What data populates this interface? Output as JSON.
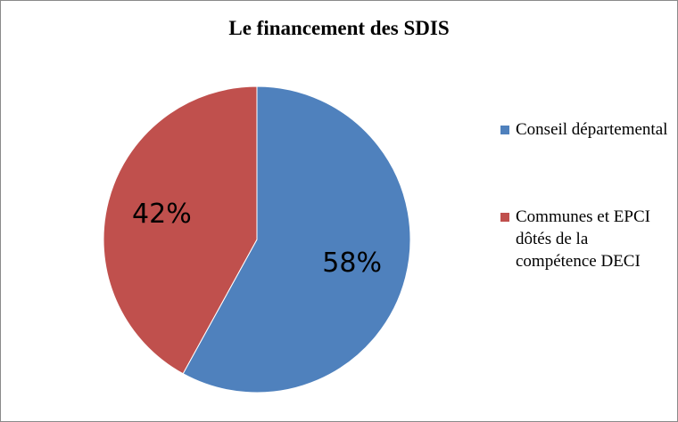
{
  "chart_data": {
    "type": "pie",
    "title": "Le financement des SDIS",
    "slices": [
      {
        "label": "Conseil départemental",
        "value": 58,
        "display": "58%",
        "color": "#4f81bd"
      },
      {
        "label": "Communes et EPCI dôtés de la compétence DECI",
        "value": 42,
        "display": "42%",
        "color": "#c0504d"
      }
    ],
    "legend": {
      "position": "right"
    }
  }
}
